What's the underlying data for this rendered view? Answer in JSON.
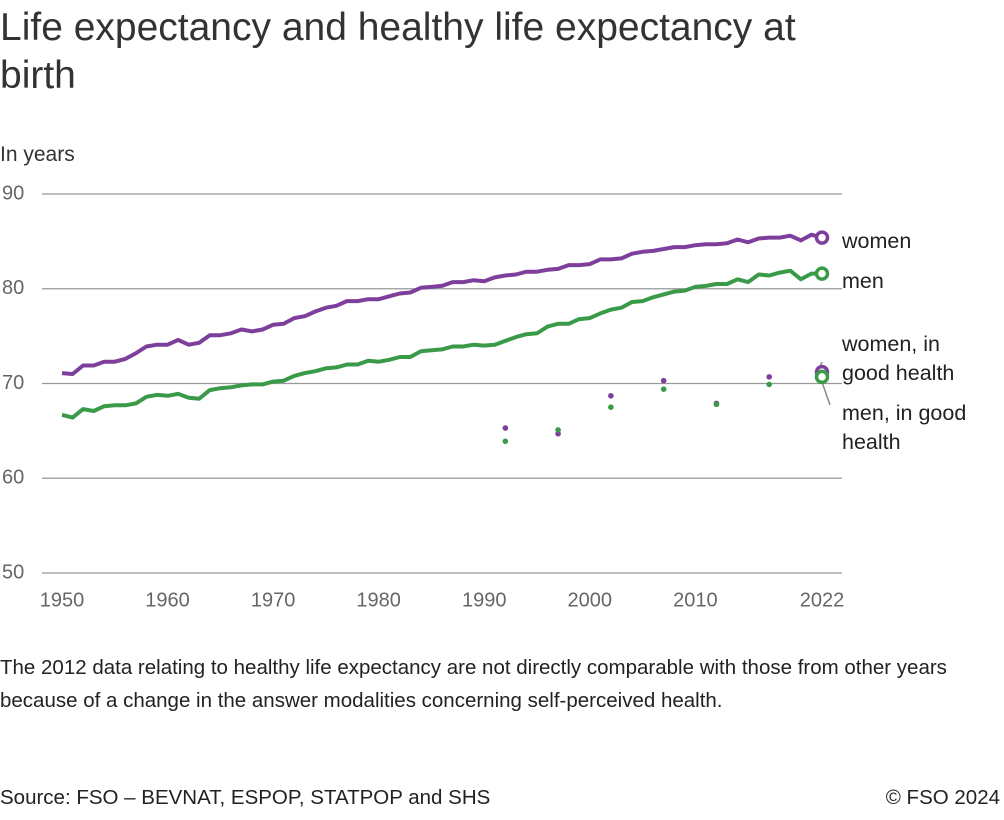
{
  "chart_data": {
    "type": "line",
    "title": "Life expectancy and healthy life expectancy at birth",
    "y_label": "In years",
    "note": "The 2012 data relating to healthy life expectancy are not directly comparable with those from other years because of a change in the answer modalities concerning self-perceived health.",
    "source": "Source: FSO – BEVNAT, ESPOP, STATPOP and SHS",
    "copyright": "© FSO 2024",
    "xlim": [
      1950,
      2022
    ],
    "xticks": [
      1950,
      1960,
      1970,
      1980,
      1990,
      2000,
      2010,
      2022
    ],
    "ylim": [
      50,
      90
    ],
    "yticks": [
      50,
      60,
      70,
      80,
      90
    ],
    "grid": true,
    "series": [
      {
        "name": "women",
        "color": "#7d3f9b",
        "style": "line",
        "x": [
          1950,
          1951,
          1952,
          1953,
          1954,
          1955,
          1956,
          1957,
          1958,
          1959,
          1960,
          1961,
          1962,
          1963,
          1964,
          1965,
          1966,
          1967,
          1968,
          1969,
          1970,
          1971,
          1972,
          1973,
          1974,
          1975,
          1976,
          1977,
          1978,
          1979,
          1980,
          1981,
          1982,
          1983,
          1984,
          1985,
          1986,
          1987,
          1988,
          1989,
          1990,
          1991,
          1992,
          1993,
          1994,
          1995,
          1996,
          1997,
          1998,
          1999,
          2000,
          2001,
          2002,
          2003,
          2004,
          2005,
          2006,
          2007,
          2008,
          2009,
          2010,
          2011,
          2012,
          2013,
          2014,
          2015,
          2016,
          2017,
          2018,
          2019,
          2020,
          2021,
          2022
        ],
        "values": [
          71.1,
          71.0,
          71.9,
          71.9,
          72.3,
          72.3,
          72.6,
          73.2,
          73.9,
          74.1,
          74.1,
          74.6,
          74.1,
          74.3,
          75.1,
          75.1,
          75.3,
          75.7,
          75.5,
          75.7,
          76.2,
          76.3,
          76.9,
          77.1,
          77.6,
          78.0,
          78.2,
          78.7,
          78.7,
          78.9,
          78.9,
          79.2,
          79.5,
          79.6,
          80.1,
          80.2,
          80.3,
          80.7,
          80.7,
          80.9,
          80.8,
          81.2,
          81.4,
          81.5,
          81.8,
          81.8,
          82.0,
          82.1,
          82.5,
          82.5,
          82.6,
          83.1,
          83.1,
          83.2,
          83.7,
          83.9,
          84.0,
          84.2,
          84.4,
          84.4,
          84.6,
          84.7,
          84.7,
          84.8,
          85.2,
          84.9,
          85.3,
          85.4,
          85.4,
          85.6,
          85.1,
          85.7,
          85.4
        ]
      },
      {
        "name": "men",
        "color": "#3a9a48",
        "style": "line",
        "x": [
          1950,
          1951,
          1952,
          1953,
          1954,
          1955,
          1956,
          1957,
          1958,
          1959,
          1960,
          1961,
          1962,
          1963,
          1964,
          1965,
          1966,
          1967,
          1968,
          1969,
          1970,
          1971,
          1972,
          1973,
          1974,
          1975,
          1976,
          1977,
          1978,
          1979,
          1980,
          1981,
          1982,
          1983,
          1984,
          1985,
          1986,
          1987,
          1988,
          1989,
          1990,
          1991,
          1992,
          1993,
          1994,
          1995,
          1996,
          1997,
          1998,
          1999,
          2000,
          2001,
          2002,
          2003,
          2004,
          2005,
          2006,
          2007,
          2008,
          2009,
          2010,
          2011,
          2012,
          2013,
          2014,
          2015,
          2016,
          2017,
          2018,
          2019,
          2020,
          2021,
          2022
        ],
        "values": [
          66.7,
          66.4,
          67.3,
          67.1,
          67.6,
          67.7,
          67.7,
          67.9,
          68.6,
          68.8,
          68.7,
          68.9,
          68.5,
          68.4,
          69.3,
          69.5,
          69.6,
          69.8,
          69.9,
          69.9,
          70.2,
          70.3,
          70.8,
          71.1,
          71.3,
          71.6,
          71.7,
          72.0,
          72.0,
          72.4,
          72.3,
          72.5,
          72.8,
          72.8,
          73.4,
          73.5,
          73.6,
          73.9,
          73.9,
          74.1,
          74.0,
          74.1,
          74.5,
          74.9,
          75.2,
          75.3,
          76.0,
          76.3,
          76.3,
          76.8,
          76.9,
          77.4,
          77.8,
          78.0,
          78.6,
          78.7,
          79.1,
          79.4,
          79.7,
          79.8,
          80.2,
          80.3,
          80.5,
          80.5,
          81.0,
          80.7,
          81.5,
          81.4,
          81.7,
          81.9,
          81.0,
          81.6,
          81.6
        ]
      },
      {
        "name": "women, in good health",
        "color": "#7d3f9b",
        "style": "points",
        "x": [
          1992,
          1997,
          2002,
          2007,
          2012,
          2017,
          2022
        ],
        "values": [
          65.3,
          64.7,
          68.7,
          70.3,
          67.9,
          70.7,
          71.2
        ]
      },
      {
        "name": "men, in good health",
        "color": "#3a9a48",
        "style": "points",
        "x": [
          1992,
          1997,
          2002,
          2007,
          2012,
          2017,
          2022
        ],
        "values": [
          63.9,
          65.1,
          67.5,
          69.4,
          67.8,
          69.9,
          70.7
        ]
      }
    ]
  }
}
